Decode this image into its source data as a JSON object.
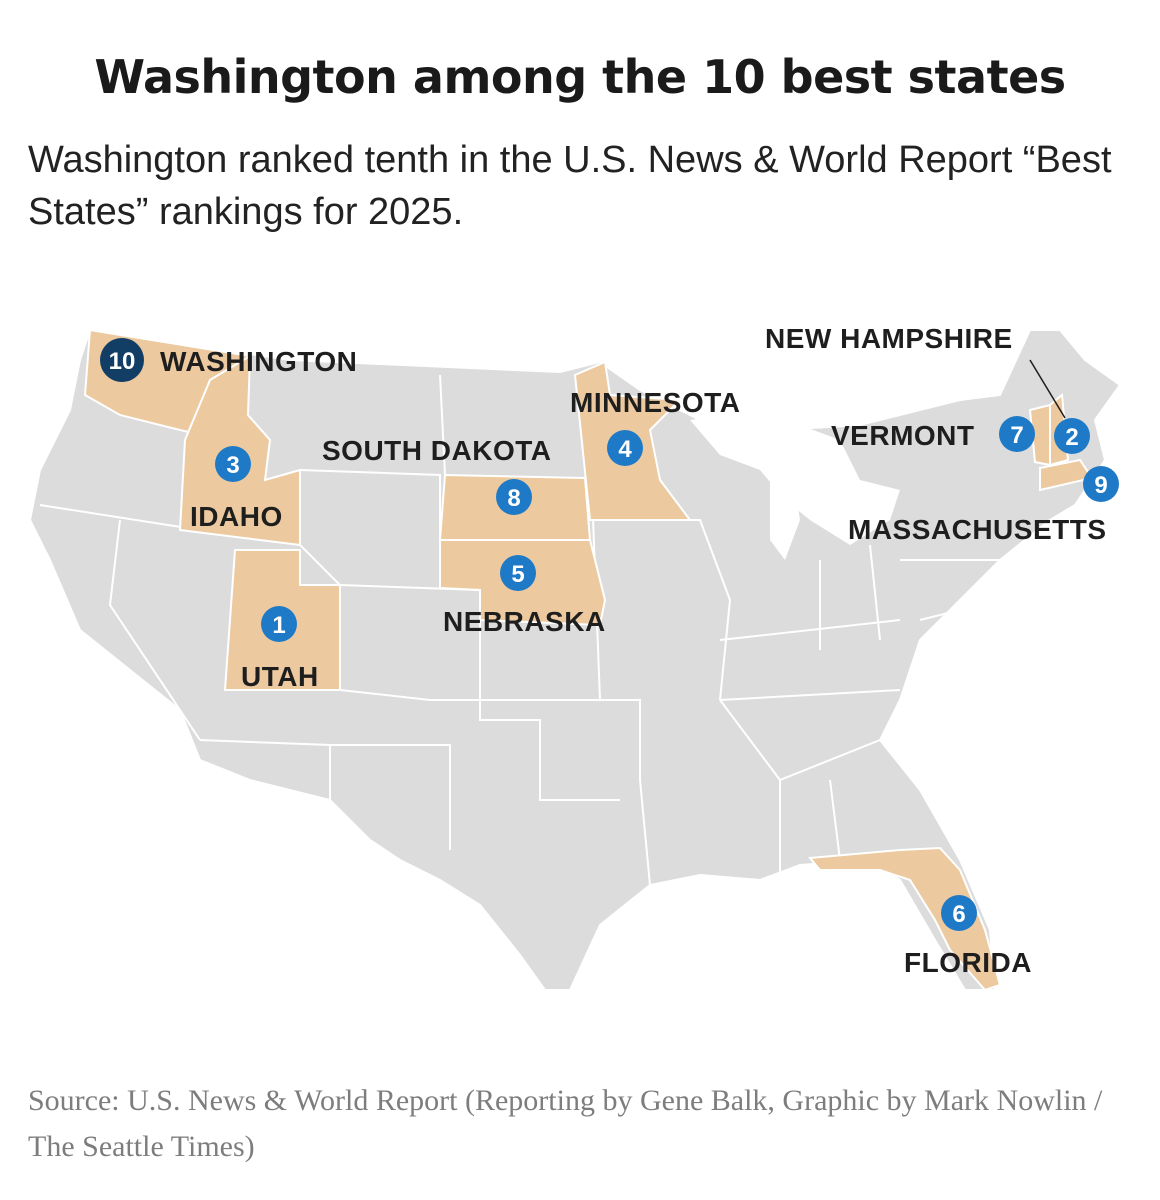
{
  "title": "Washington among the 10 best states",
  "subtitle": "Washington ranked tenth in the U.S. News & World Report “Best States” rankings for 2025.",
  "source": "Source: U.S. News & World Report (Reporting by Gene Balk, Graphic by Mark Nowlin / The Seattle Times)",
  "colors": {
    "highlight": "#ecc99e",
    "land": "#dcdcdc",
    "border": "#ffffff",
    "badge": "#1e7ac7",
    "badge_top": "#123e66"
  },
  "states": [
    {
      "rank": "1",
      "name": "UTAH"
    },
    {
      "rank": "2",
      "name": "NEW HAMPSHIRE"
    },
    {
      "rank": "3",
      "name": "IDAHO"
    },
    {
      "rank": "4",
      "name": "MINNESOTA"
    },
    {
      "rank": "5",
      "name": "NEBRASKA"
    },
    {
      "rank": "6",
      "name": "FLORIDA"
    },
    {
      "rank": "7",
      "name": "VERMONT"
    },
    {
      "rank": "8",
      "name": "SOUTH DAKOTA"
    },
    {
      "rank": "9",
      "name": "MASSACHUSETTS"
    },
    {
      "rank": "10",
      "name": "WASHINGTON"
    }
  ]
}
